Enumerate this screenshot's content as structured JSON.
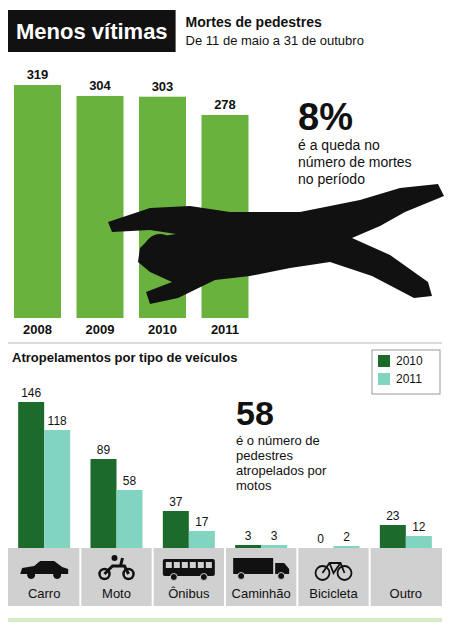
{
  "chart_data": [
    {
      "type": "bar",
      "title": "Menos vítimas",
      "subtitle": "Mortes de pedestres",
      "period": "De 11 de maio a 31 de outubro",
      "categories": [
        "2008",
        "2009",
        "2010",
        "2011"
      ],
      "values": [
        319,
        304,
        303,
        278
      ],
      "color": "#6ab23e",
      "ylim": [
        0,
        319
      ],
      "data_labels": true,
      "tick_labels": "x",
      "annotations": [
        "8%",
        "é a queda no número de mortes no período"
      ]
    },
    {
      "type": "bar",
      "title": "Atropelamentos por tipo de veículos",
      "categories": [
        "Carro",
        "Moto",
        "Ônibus",
        "Caminhão",
        "Bicicleta",
        "Outro"
      ],
      "series": [
        {
          "name": "2010",
          "color": "#1d6b2c",
          "values": [
            146,
            89,
            37,
            3,
            0,
            23
          ]
        },
        {
          "name": "2011",
          "color": "#80d4c0",
          "values": [
            118,
            58,
            17,
            3,
            2,
            12
          ]
        }
      ],
      "ylim": [
        0,
        146
      ],
      "data_labels": true,
      "tick_labels": "x",
      "legend": "top-right",
      "annotations": [
        "58",
        "é o número de pedestres atropelados por motos"
      ]
    }
  ]
}
